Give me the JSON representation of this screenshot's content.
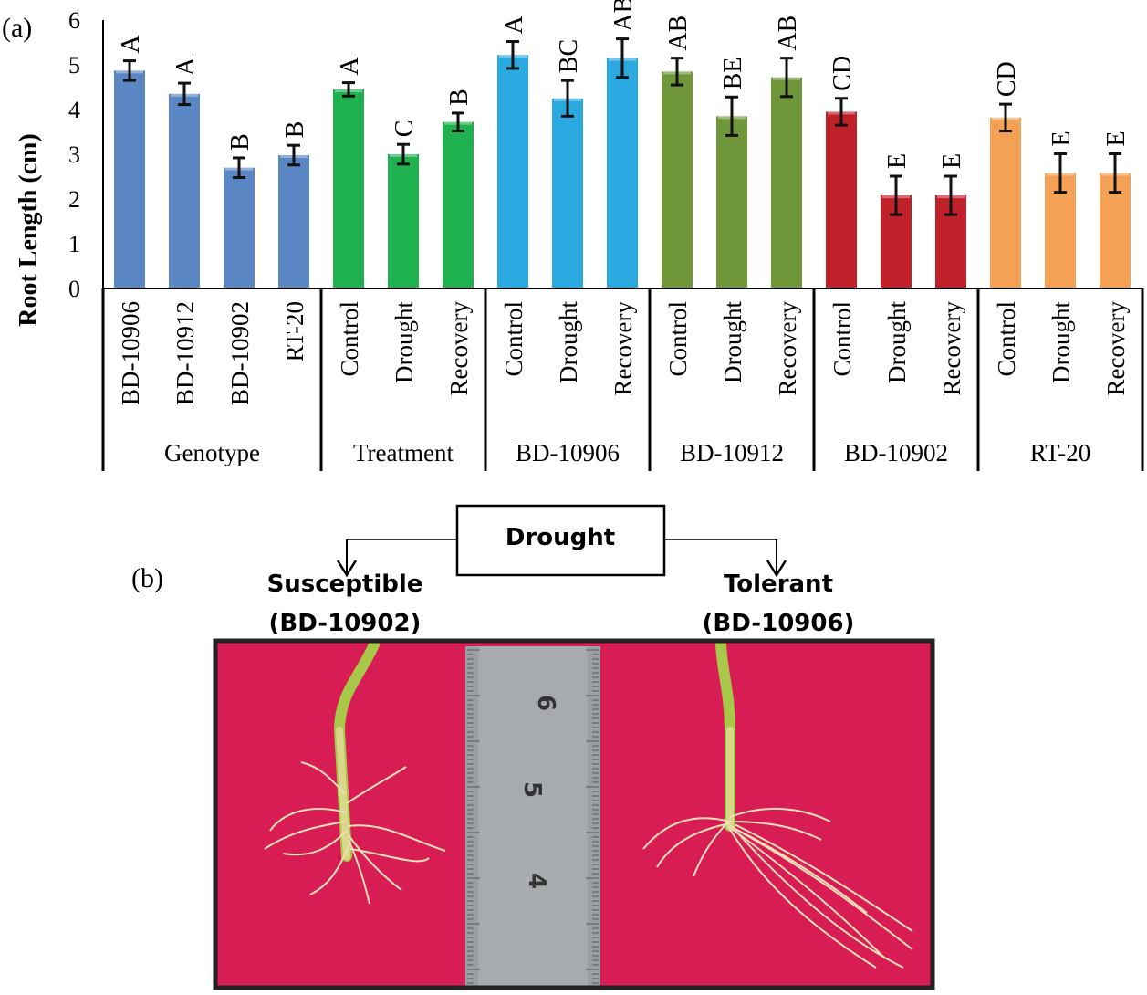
{
  "panel_a_label": "(a)",
  "panel_b_label": "(b)",
  "colors": {
    "genotype": "#5b86c4",
    "treatment": "#1fb04f",
    "bd10906": "#2aa9e0",
    "bd10912": "#6f973a",
    "bd10902": "#c0202a",
    "rt20": "#f4a055",
    "axis": "#000000",
    "photo_background": "#d81d55",
    "ruler": "#9b9ea3"
  },
  "chart_data": {
    "type": "bar",
    "title": "",
    "ylabel": "Root Length (cm)",
    "ylim": [
      0,
      6
    ],
    "yticks": [
      "0",
      "1",
      "2",
      "3",
      "4",
      "5",
      "6"
    ],
    "groups": [
      {
        "name": "Genotype",
        "color_key": "genotype",
        "bars": [
          {
            "label": "BD-10906",
            "value": 4.87,
            "error": 0.22,
            "letter": "A"
          },
          {
            "label": "BD-10912",
            "value": 4.35,
            "error": 0.24,
            "letter": "A"
          },
          {
            "label": "BD-10902",
            "value": 2.7,
            "error": 0.22,
            "letter": "B"
          },
          {
            "label": "RT-20",
            "value": 2.98,
            "error": 0.22,
            "letter": "B"
          }
        ]
      },
      {
        "name": "Treatment",
        "color_key": "treatment",
        "bars": [
          {
            "label": "Control",
            "value": 4.45,
            "error": 0.15,
            "letter": "A"
          },
          {
            "label": "Drought",
            "value": 3.0,
            "error": 0.22,
            "letter": "C"
          },
          {
            "label": "Recovery",
            "value": 3.72,
            "error": 0.2,
            "letter": "B"
          }
        ]
      },
      {
        "name": "BD-10906",
        "color_key": "bd10906",
        "bars": [
          {
            "label": "Control",
            "value": 5.22,
            "error": 0.3,
            "letter": "A"
          },
          {
            "label": "Drought",
            "value": 4.25,
            "error": 0.4,
            "letter": "BC"
          },
          {
            "label": "Recovery",
            "value": 5.15,
            "error": 0.43,
            "letter": "AB"
          }
        ]
      },
      {
        "name": "BD-10912",
        "color_key": "bd10912",
        "bars": [
          {
            "label": "Control",
            "value": 4.85,
            "error": 0.3,
            "letter": "AB"
          },
          {
            "label": "Drought",
            "value": 3.85,
            "error": 0.43,
            "letter": "BE"
          },
          {
            "label": "Recovery",
            "value": 4.72,
            "error": 0.43,
            "letter": "AB"
          }
        ]
      },
      {
        "name": "BD-10902",
        "color_key": "bd10902",
        "bars": [
          {
            "label": "Control",
            "value": 3.95,
            "error": 0.3,
            "letter": "CD"
          },
          {
            "label": "Drought",
            "value": 2.08,
            "error": 0.43,
            "letter": "E"
          },
          {
            "label": "Recovery",
            "value": 2.08,
            "error": 0.43,
            "letter": "E"
          }
        ]
      },
      {
        "name": "RT-20",
        "color_key": "rt20",
        "bars": [
          {
            "label": "Control",
            "value": 3.82,
            "error": 0.3,
            "letter": "CD"
          },
          {
            "label": "Drought",
            "value": 2.58,
            "error": 0.43,
            "letter": "E"
          },
          {
            "label": "Recovery",
            "value": 2.58,
            "error": 0.43,
            "letter": "E"
          }
        ]
      }
    ]
  },
  "diagram": {
    "root_label": "Drought",
    "left_label_line1": "Susceptible",
    "left_label_line2": "(BD-10902)",
    "right_label_line1": "Tolerant",
    "right_label_line2": "(BD-10906)"
  },
  "photo": {
    "ruler_numbers": [
      "6",
      "5",
      "4"
    ]
  }
}
